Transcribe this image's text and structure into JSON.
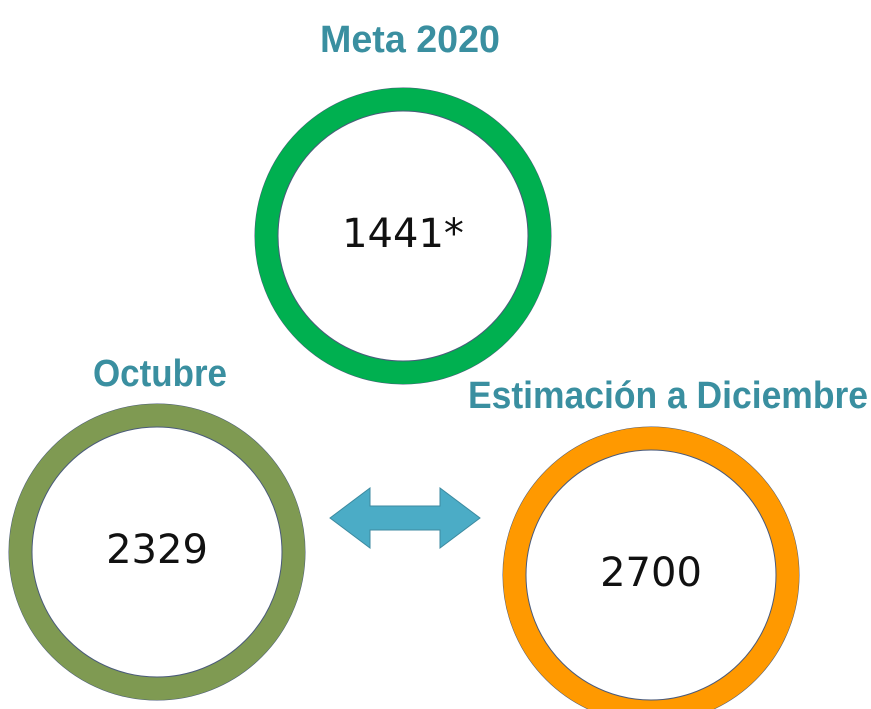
{
  "circles": [
    {
      "title": "Meta 2020",
      "value": "1441*",
      "color": "#00b050"
    },
    {
      "title": "Octubre",
      "value": "2329",
      "color": "#7f9a52"
    },
    {
      "title": "Estimación a Diciembre",
      "value": "2700",
      "color": "#ff9900"
    }
  ]
}
